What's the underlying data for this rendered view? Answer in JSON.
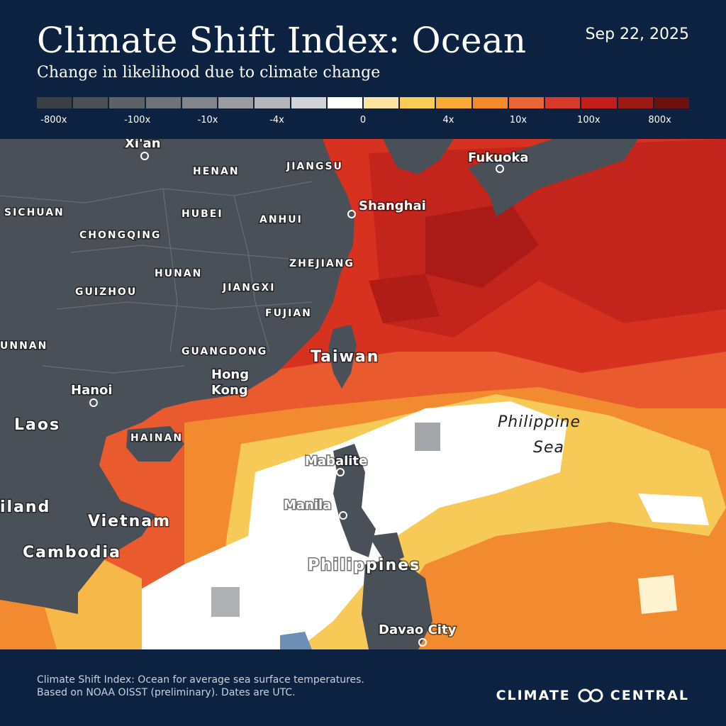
{
  "header": {
    "title": "Climate Shift Index: Ocean",
    "date": "Sep 22, 2025",
    "subtitle": "Change in likelihood due to climate change"
  },
  "legend": {
    "colors": [
      "#3a3f46",
      "#4b5057",
      "#5d6168",
      "#6f737a",
      "#83868c",
      "#9a9ca1",
      "#b4b6ba",
      "#d2d3d6",
      "#ffffff",
      "#fbe4a0",
      "#f8cc55",
      "#f7ab36",
      "#f48a2b",
      "#ec6535",
      "#d9392b",
      "#c21f1c",
      "#9c1b16",
      "#6b1210"
    ],
    "labels": [
      "-800x",
      "-100x",
      "-10x",
      "-4x",
      "0",
      "4x",
      "10x",
      "100x",
      "800x"
    ]
  },
  "map": {
    "provinces": [
      "HENAN",
      "JIANGSU",
      "SICHUAN",
      "HUBEI",
      "ANHUI",
      "CHONGQING",
      "ZHEJIANG",
      "HUNAN",
      "JIANGXI",
      "GUIZHOU",
      "FUJIAN",
      "UNNAN",
      "GUANGDONG",
      "HAINAN"
    ],
    "cities": [
      "Xi'an",
      "Shanghai",
      "Fukuoka",
      "Hong",
      "Kong",
      "Hanoi",
      "Mabalite",
      "Manila",
      "Davao City"
    ],
    "countries": [
      "Taiwan",
      "Laos",
      "iland",
      "Vietnam",
      "Cambodia",
      "Philippines"
    ],
    "sea": [
      "Philippine",
      "Sea"
    ]
  },
  "footer": {
    "line1": "Climate Shift Index: Ocean for average sea surface temperatures.",
    "line2": "Based on NOAA OISST (preliminary). Dates are UTC.",
    "brand_left": "CLIMATE",
    "brand_right": "CENTRAL"
  }
}
